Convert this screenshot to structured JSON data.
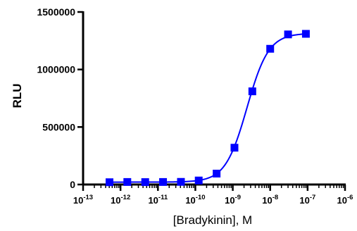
{
  "chart_data": {
    "type": "scatter",
    "xlabel": "[Bradykinin], M",
    "ylabel": "RLU",
    "x_scale": "log",
    "xlim": [
      1e-13,
      1e-06
    ],
    "ylim": [
      0,
      1500000
    ],
    "x_ticks": [
      {
        "value": 1e-13,
        "base": "10",
        "exp": "-13"
      },
      {
        "value": 1e-12,
        "base": "10",
        "exp": "-12"
      },
      {
        "value": 1e-11,
        "base": "10",
        "exp": "-11"
      },
      {
        "value": 1e-10,
        "base": "10",
        "exp": "-10"
      },
      {
        "value": 1e-09,
        "base": "10",
        "exp": "-9"
      },
      {
        "value": 1e-08,
        "base": "10",
        "exp": "-8"
      },
      {
        "value": 1e-07,
        "base": "10",
        "exp": "-7"
      },
      {
        "value": 1e-06,
        "base": "10",
        "exp": "-6"
      }
    ],
    "y_ticks": [
      {
        "value": 0,
        "label": "0"
      },
      {
        "value": 500000,
        "label": "500000"
      },
      {
        "value": 1000000,
        "label": "1000000"
      },
      {
        "value": 1500000,
        "label": "1500000"
      }
    ],
    "series": [
      {
        "color": "#0000ff",
        "marker": "square",
        "points": [
          {
            "x": 5.08e-13,
            "y": 20000
          },
          {
            "x": 1.52e-12,
            "y": 22000
          },
          {
            "x": 4.57e-12,
            "y": 21000
          },
          {
            "x": 1.37e-11,
            "y": 22000
          },
          {
            "x": 4.12e-11,
            "y": 23000
          },
          {
            "x": 1.23e-10,
            "y": 35000
          },
          {
            "x": 3.7e-10,
            "y": 95000
          },
          {
            "x": 1.11e-09,
            "y": 320000
          },
          {
            "x": 3.33e-09,
            "y": 810000
          },
          {
            "x": 1e-08,
            "y": 1180000
          },
          {
            "x": 3e-08,
            "y": 1305000
          },
          {
            "x": 9e-08,
            "y": 1310000
          }
        ],
        "fit": {
          "model": "four-parameter logistic",
          "bottom": 21000,
          "top": 1315000,
          "ec50": 2.4e-09,
          "hill": 1.5
        }
      }
    ],
    "grid": false,
    "legend": "none"
  }
}
